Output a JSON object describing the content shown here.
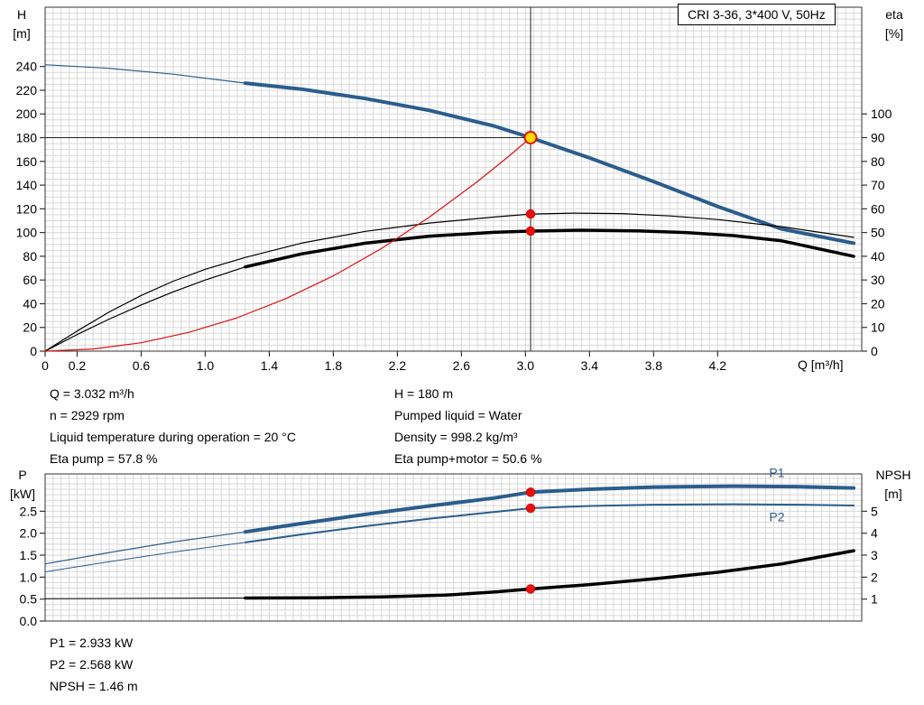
{
  "title_box": {
    "label": "CRI 3-36, 3*400 V, 50Hz"
  },
  "colors": {
    "curve_blue": "#2b5d8c",
    "curve_black": "#000000",
    "curve_red": "#dd1111",
    "grid": "#d8d8d8",
    "axis": "#333333",
    "duty_line": "#222222",
    "duty_yellow": "#ffdd00",
    "duty_ring": "#dd1111",
    "dot_red": "#e8100c",
    "label_blue": "#2b5d8c"
  },
  "chart_data": [
    {
      "type": "line",
      "name": "qh-eta-chart",
      "x_axis": {
        "label": "Q [m³/h]",
        "range": [
          0,
          5.1
        ],
        "grid_step": 0.05,
        "ticks": [
          0,
          0.2,
          0.6,
          1.0,
          1.4,
          1.8,
          2.2,
          2.6,
          3.0,
          3.4,
          3.8,
          4.2
        ],
        "tick_labels": [
          "0",
          "0.2",
          "0.6",
          "1.0",
          "1.4",
          "1.8",
          "2.2",
          "2.6",
          "3.0",
          "3.4",
          "3.8",
          "4.2"
        ]
      },
      "y_left": {
        "title": [
          "H",
          "[m]"
        ],
        "range": [
          0,
          290
        ],
        "grid_step": 5,
        "ticks": [
          0,
          20,
          40,
          60,
          80,
          100,
          120,
          140,
          160,
          180,
          200,
          220,
          240
        ],
        "tick_labels": [
          "0",
          "20",
          "40",
          "60",
          "80",
          "100",
          "120",
          "140",
          "160",
          "180",
          "200",
          "220",
          "240"
        ]
      },
      "y_right": {
        "title": [
          "eta",
          "[%]"
        ],
        "left_per_unit": 2,
        "ticks": [
          0,
          10,
          20,
          30,
          40,
          50,
          60,
          70,
          80,
          90,
          100
        ],
        "tick_labels": [
          "0",
          "10",
          "20",
          "30",
          "40",
          "50",
          "60",
          "70",
          "80",
          "90",
          "100"
        ]
      },
      "duty_lines": {
        "q": 3.032,
        "h": 180
      },
      "series": [
        {
          "name": "qh-curve-thin",
          "color": "curve_blue",
          "width": 1.2,
          "axis": "left",
          "points": [
            [
              0,
              241.5
            ],
            [
              0.4,
              238.5
            ],
            [
              0.8,
              233.5
            ],
            [
              1.25,
              226
            ]
          ]
        },
        {
          "name": "qh-curve",
          "color": "curve_blue",
          "width": 4,
          "axis": "left",
          "points": [
            [
              1.25,
              226
            ],
            [
              1.6,
              221
            ],
            [
              2.0,
              213
            ],
            [
              2.4,
              203
            ],
            [
              2.8,
              190
            ],
            [
              3.032,
              180
            ],
            [
              3.4,
              163
            ],
            [
              3.8,
              143
            ],
            [
              4.2,
              122
            ],
            [
              4.6,
              103
            ],
            [
              5.05,
              91
            ]
          ]
        },
        {
          "name": "eta-pump-curve",
          "color": "curve_black",
          "width": 1.2,
          "axis": "right",
          "points": [
            [
              0,
              0
            ],
            [
              0.2,
              8.5
            ],
            [
              0.4,
              16.5
            ],
            [
              0.6,
              23.5
            ],
            [
              0.8,
              29.5
            ],
            [
              1.0,
              34.5
            ],
            [
              1.25,
              39.5
            ],
            [
              1.6,
              45.5
            ],
            [
              2.0,
              50.5
            ],
            [
              2.4,
              54
            ],
            [
              2.8,
              56.5
            ],
            [
              3.032,
              57.8
            ],
            [
              3.3,
              58.2
            ],
            [
              3.6,
              58
            ],
            [
              3.9,
              57
            ],
            [
              4.2,
              55.5
            ],
            [
              4.6,
              52.5
            ],
            [
              5.05,
              48
            ]
          ]
        },
        {
          "name": "eta-pump-motor-thin",
          "color": "curve_black",
          "width": 1.2,
          "axis": "right",
          "points": [
            [
              0,
              0
            ],
            [
              0.2,
              7
            ],
            [
              0.4,
              13.5
            ],
            [
              0.6,
              19.5
            ],
            [
              0.8,
              25
            ],
            [
              1.0,
              30
            ],
            [
              1.25,
              35.5
            ]
          ]
        },
        {
          "name": "eta-pump-motor-curve",
          "color": "curve_black",
          "width": 3.5,
          "axis": "right",
          "points": [
            [
              1.25,
              35.5
            ],
            [
              1.6,
              41
            ],
            [
              2.0,
              45.5
            ],
            [
              2.4,
              48.5
            ],
            [
              2.8,
              50.1
            ],
            [
              3.032,
              50.6
            ],
            [
              3.35,
              51
            ],
            [
              3.7,
              50.7
            ],
            [
              4.0,
              50
            ],
            [
              4.3,
              48.7
            ],
            [
              4.6,
              46.5
            ],
            [
              5.05,
              40
            ]
          ]
        },
        {
          "name": "system-curve",
          "color": "curve_red",
          "width": 1.2,
          "axis": "left",
          "points": [
            [
              0,
              0
            ],
            [
              0.3,
              1.8
            ],
            [
              0.6,
              7.1
            ],
            [
              0.9,
              15.9
            ],
            [
              1.2,
              28.2
            ],
            [
              1.5,
              44.1
            ],
            [
              1.8,
              63.5
            ],
            [
              2.1,
              86.5
            ],
            [
              2.4,
              113
            ],
            [
              2.7,
              143
            ],
            [
              2.9,
              164.8
            ],
            [
              3.032,
              180
            ]
          ]
        }
      ],
      "markers": [
        {
          "type": "duty",
          "q": 3.032,
          "value": 180,
          "axis": "left"
        },
        {
          "type": "dot",
          "q": 3.032,
          "value": 57.8,
          "axis": "right"
        },
        {
          "type": "dot",
          "q": 3.032,
          "value": 50.6,
          "axis": "right"
        }
      ]
    },
    {
      "type": "line",
      "name": "power-npsh-chart",
      "x_axis": {
        "label": "",
        "range": [
          0,
          5.1
        ],
        "grid_step": 0.05,
        "ticks": [],
        "tick_labels": []
      },
      "y_left": {
        "title": [
          "P",
          "[kW]"
        ],
        "range": [
          0,
          3.35
        ],
        "grid_step": 0.125,
        "ticks": [
          0,
          0.5,
          1.0,
          1.5,
          2.0,
          2.5
        ],
        "tick_labels": [
          "0.0",
          "0.5",
          "1.0",
          "1.5",
          "2.0",
          "2.5"
        ]
      },
      "y_right": {
        "title": [
          "NPSH",
          "[m]"
        ],
        "left_per_unit": 0.5,
        "ticks": [
          1,
          2,
          3,
          4,
          5
        ],
        "tick_labels": [
          "1",
          "2",
          "3",
          "4",
          "5"
        ]
      },
      "series": [
        {
          "name": "p1-thin",
          "color": "curve_blue",
          "width": 1.2,
          "axis": "left",
          "points": [
            [
              0,
              1.3
            ],
            [
              0.4,
              1.56
            ],
            [
              0.8,
              1.8
            ],
            [
              1.25,
              2.03
            ]
          ]
        },
        {
          "name": "p1-curve",
          "color": "curve_blue",
          "width": 4,
          "axis": "left",
          "points": [
            [
              1.25,
              2.03
            ],
            [
              1.6,
              2.22
            ],
            [
              2.0,
              2.43
            ],
            [
              2.4,
              2.62
            ],
            [
              2.8,
              2.8
            ],
            [
              3.032,
              2.933
            ],
            [
              3.4,
              3.0
            ],
            [
              3.8,
              3.05
            ],
            [
              4.3,
              3.07
            ],
            [
              4.7,
              3.06
            ],
            [
              5.05,
              3.03
            ]
          ]
        },
        {
          "name": "p2-thin",
          "color": "curve_blue",
          "width": 1,
          "axis": "left",
          "points": [
            [
              0,
              1.12
            ],
            [
              0.4,
              1.35
            ],
            [
              0.8,
              1.57
            ],
            [
              1.25,
              1.79
            ]
          ]
        },
        {
          "name": "p2-curve",
          "color": "curve_blue",
          "width": 2,
          "axis": "left",
          "points": [
            [
              1.25,
              1.79
            ],
            [
              1.6,
              1.97
            ],
            [
              2.0,
              2.16
            ],
            [
              2.4,
              2.33
            ],
            [
              2.8,
              2.48
            ],
            [
              3.032,
              2.568
            ],
            [
              3.4,
              2.62
            ],
            [
              3.8,
              2.65
            ],
            [
              4.3,
              2.66
            ],
            [
              4.7,
              2.65
            ],
            [
              5.05,
              2.63
            ]
          ]
        },
        {
          "name": "npsh-thin",
          "color": "curve_black",
          "width": 1,
          "axis": "right",
          "points": [
            [
              0,
              1.02
            ],
            [
              0.6,
              1.03
            ],
            [
              1.25,
              1.05
            ]
          ]
        },
        {
          "name": "npsh-curve",
          "color": "curve_black",
          "width": 3.5,
          "axis": "right",
          "points": [
            [
              1.25,
              1.05
            ],
            [
              1.7,
              1.06
            ],
            [
              2.1,
              1.1
            ],
            [
              2.5,
              1.18
            ],
            [
              2.8,
              1.32
            ],
            [
              3.032,
              1.46
            ],
            [
              3.4,
              1.66
            ],
            [
              3.8,
              1.92
            ],
            [
              4.2,
              2.22
            ],
            [
              4.6,
              2.6
            ],
            [
              5.05,
              3.2
            ]
          ]
        }
      ],
      "series_labels": [
        {
          "text": "P1",
          "q": 4.57,
          "v": 3.28
        },
        {
          "text": "P2",
          "q": 4.57,
          "v": 2.27
        }
      ],
      "markers": [
        {
          "type": "dot",
          "q": 3.032,
          "value": 2.933,
          "axis": "left"
        },
        {
          "type": "dot",
          "q": 3.032,
          "value": 2.568,
          "axis": "left"
        },
        {
          "type": "dot",
          "q": 3.032,
          "value": 1.46,
          "axis": "right"
        }
      ]
    }
  ],
  "info_top": {
    "left": [
      "Q = 3.032 m³/h",
      "n = 2929 rpm",
      "Liquid temperature during operation = 20 °C",
      "Eta pump = 57.8 %"
    ],
    "right": [
      "H = 180 m",
      "Pumped liquid = Water",
      "Density = 998.2 kg/m³",
      "Eta pump+motor = 50.6 %"
    ]
  },
  "info_bottom": [
    "P1 = 2.933 kW",
    "P2 = 2.568 kW",
    "NPSH = 1.46 m"
  ]
}
